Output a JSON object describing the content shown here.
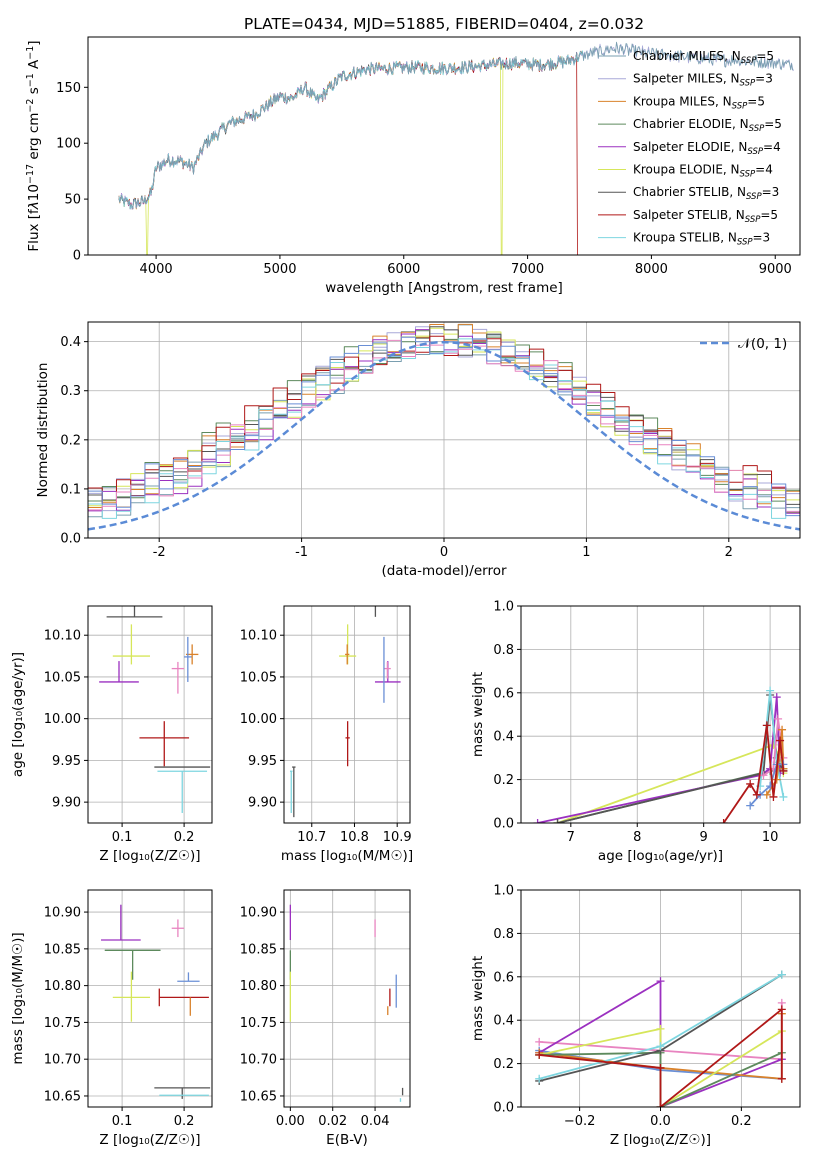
{
  "title": "PLATE=0434, MJD=51885, FIBERID=0404, z=0.032",
  "models": [
    {
      "name": "Chabrier MILES",
      "nssp": "5",
      "color": "#7a9fb0"
    },
    {
      "name": "Salpeter MILES",
      "nssp": "3",
      "color": "#a8a8d8"
    },
    {
      "name": "Kroupa MILES",
      "nssp": "5",
      "color": "#d9822b"
    },
    {
      "name": "Chabrier ELODIE",
      "nssp": "5",
      "color": "#5d8a5d"
    },
    {
      "name": "Salpeter ELODIE",
      "nssp": "4",
      "color": "#9b30c0"
    },
    {
      "name": "Kroupa ELODIE",
      "nssp": "4",
      "color": "#d6e65a"
    },
    {
      "name": "Chabrier STELIB",
      "nssp": "3",
      "color": "#555555"
    },
    {
      "name": "Salpeter STELIB",
      "nssp": "5",
      "color": "#b01818"
    },
    {
      "name": "Kroupa STELIB",
      "nssp": "3",
      "color": "#7ed6e0"
    }
  ],
  "extra_colors": {
    "pink": "#e884c0",
    "blue": "#6a8fd6"
  },
  "chart_data": [
    {
      "id": "spectrum",
      "type": "line",
      "xlabel": "wavelength [Angstrom, rest frame]",
      "ylabel_parts": [
        "Flux [f",
        "λ",
        "10",
        "−17",
        " erg cm",
        "−2",
        " s",
        "−1",
        " A",
        "−1",
        "]"
      ],
      "xlim": [
        3450,
        9200
      ],
      "ylim": [
        0,
        195
      ],
      "xticks": [
        4000,
        5000,
        6000,
        7000,
        8000,
        9000
      ],
      "yticks": [
        0,
        50,
        100,
        150
      ],
      "nssp_label": "N",
      "nssp_sub": "SSP",
      "continuum": [
        [
          3700,
          50
        ],
        [
          3800,
          45
        ],
        [
          3900,
          48
        ],
        [
          3960,
          55
        ],
        [
          4000,
          78
        ],
        [
          4100,
          85
        ],
        [
          4200,
          84
        ],
        [
          4300,
          78
        ],
        [
          4400,
          100
        ],
        [
          4600,
          118
        ],
        [
          4800,
          126
        ],
        [
          5000,
          142
        ],
        [
          5100,
          140
        ],
        [
          5200,
          150
        ],
        [
          5300,
          138
        ],
        [
          5500,
          160
        ],
        [
          5700,
          166
        ],
        [
          5900,
          167
        ],
        [
          6100,
          168
        ],
        [
          6300,
          167
        ],
        [
          6500,
          168
        ],
        [
          6700,
          170
        ],
        [
          6900,
          172
        ],
        [
          7100,
          170
        ],
        [
          7300,
          173
        ],
        [
          7500,
          180
        ],
        [
          7700,
          185
        ],
        [
          8000,
          180
        ],
        [
          8500,
          175
        ],
        [
          9000,
          172
        ],
        [
          9150,
          170
        ]
      ],
      "dropouts": [
        {
          "model": 5,
          "x": 3930
        },
        {
          "model": 5,
          "x": 6790
        },
        {
          "model": 7,
          "x": 7410
        }
      ]
    },
    {
      "id": "residual-histogram",
      "type": "step",
      "xlabel": "(data-model)/error",
      "ylabel": "Normed distribution",
      "xlim": [
        -2.5,
        2.5
      ],
      "ylim": [
        0,
        0.44
      ],
      "xticks": [
        -2,
        -1,
        0,
        1,
        2
      ],
      "yticks": [
        0.0,
        0.1,
        0.2,
        0.3,
        0.4
      ],
      "legend": "𝒩(0, 1)",
      "bin_width": 0.1,
      "bin_start": -2.5,
      "normal": {
        "mu": 0,
        "sigma": 1
      }
    },
    {
      "id": "age-vs-Z",
      "type": "errorbar",
      "xlabel": "Z [log₁₀(Z/Z☉)]",
      "ylabel": "age  [log₁₀(age/yr)]",
      "xlim": [
        0.045,
        0.245
      ],
      "ylim": [
        9.875,
        10.135
      ],
      "xticks": [
        0.1,
        0.2
      ],
      "yticks": [
        9.9,
        9.95,
        10.0,
        10.05,
        10.1
      ],
      "points": [
        {
          "c": "#555555",
          "x": 0.12,
          "xe": 0.045,
          "y": 10.122,
          "ye": [
            0.0,
            0.018
          ]
        },
        {
          "c": "#555555",
          "x": 0.197,
          "xe": 0.045,
          "y": 9.942,
          "ye": [
            0.0,
            0.0
          ]
        },
        {
          "c": "#d6e65a",
          "x": 0.115,
          "xe": 0.03,
          "y": 10.075,
          "ye": [
            0.01,
            0.038
          ]
        },
        {
          "c": "#9b30c0",
          "x": 0.095,
          "xe": 0.032,
          "y": 10.044,
          "ye": [
            0.0,
            0.025
          ]
        },
        {
          "c": "#e884c0",
          "x": 0.19,
          "xe": 0.01,
          "y": 10.06,
          "ye": [
            0.03,
            0.008
          ]
        },
        {
          "c": "#d9822b",
          "x": 0.213,
          "xe": 0.01,
          "y": 10.077,
          "ye": [
            0.012,
            0.012
          ]
        },
        {
          "c": "#6a8fd6",
          "x": 0.206,
          "xe": 0.006,
          "y": 10.074,
          "ye": [
            0.03,
            0.024
          ]
        },
        {
          "c": "#b01818",
          "x": 0.168,
          "xe": 0.04,
          "y": 9.977,
          "ye": [
            0.034,
            0.02
          ]
        },
        {
          "c": "#7ed6e0",
          "x": 0.197,
          "xe": 0.04,
          "y": 9.937,
          "ye": [
            0.05,
            0.0
          ]
        }
      ]
    },
    {
      "id": "age-vs-mass",
      "type": "errorbar",
      "xlabel": "mass [log₁₀(M/M☉)]",
      "ylabel": "",
      "xlim": [
        10.635,
        10.93
      ],
      "ylim": [
        9.875,
        10.135
      ],
      "xticks": [
        10.7,
        10.8,
        10.9
      ],
      "yticks": [
        9.9,
        9.95,
        10.0,
        10.05,
        10.1
      ],
      "points": [
        {
          "c": "#555555",
          "x": 10.849,
          "xe": 0.0,
          "y": 10.122,
          "ye": [
            0.0,
            0.018
          ]
        },
        {
          "c": "#d6e65a",
          "x": 10.784,
          "xe": 0.02,
          "y": 10.075,
          "ye": [
            0.01,
            0.038
          ]
        },
        {
          "c": "#d9822b",
          "x": 10.783,
          "xe": 0.005,
          "y": 10.077,
          "ye": [
            0.012,
            0.012
          ]
        },
        {
          "c": "#9b30c0",
          "x": 10.878,
          "xe": 0.03,
          "y": 10.044,
          "ye": [
            0.0,
            0.025
          ]
        },
        {
          "c": "#e884c0",
          "x": 10.877,
          "xe": 0.008,
          "y": 10.06,
          "ye": [
            0.012,
            0.008
          ]
        },
        {
          "c": "#6a8fd6",
          "x": 10.869,
          "xe": 0.0,
          "y": 10.074,
          "ye": [
            0.055,
            0.024
          ]
        },
        {
          "c": "#b01818",
          "x": 10.784,
          "xe": 0.005,
          "y": 9.977,
          "ye": [
            0.034,
            0.02
          ]
        },
        {
          "c": "#555555",
          "x": 10.658,
          "xe": 0.004,
          "y": 9.942,
          "ye": [
            0.06,
            0.0
          ]
        },
        {
          "c": "#7ed6e0",
          "x": 10.652,
          "xe": 0.003,
          "y": 9.937,
          "ye": [
            0.05,
            0.0
          ]
        }
      ]
    },
    {
      "id": "weight-vs-age",
      "type": "line",
      "xlabel": "age  [log₁₀(age/yr)]",
      "ylabel": "mass weight",
      "xlim": [
        6.25,
        10.45
      ],
      "ylim": [
        0,
        1
      ],
      "xticks": [
        7,
        8,
        9,
        10
      ],
      "yticks": [
        0.0,
        0.2,
        0.4,
        0.6,
        0.8,
        1.0
      ],
      "series": [
        {
          "c": "#5d8a5d",
          "pts": [
            [
              6.8,
              0.0
            ],
            [
              10.0,
              0.24
            ],
            [
              10.1,
              0.25
            ],
            [
              10.2,
              0.25
            ]
          ]
        },
        {
          "c": "#d6e65a",
          "pts": [
            [
              6.8,
              0.0
            ],
            [
              10.05,
              0.36
            ],
            [
              10.15,
              0.3
            ],
            [
              10.2,
              0.23
            ]
          ]
        },
        {
          "c": "#9b30c0",
          "pts": [
            [
              6.5,
              0.0
            ],
            [
              9.85,
              0.22
            ],
            [
              10.0,
              0.25
            ],
            [
              10.1,
              0.58
            ],
            [
              10.15,
              0.23
            ]
          ]
        },
        {
          "c": "#555555",
          "pts": [
            [
              6.8,
              0.0
            ],
            [
              9.9,
              0.23
            ],
            [
              10.0,
              0.59
            ],
            [
              10.1,
              0.3
            ],
            [
              10.2,
              0.24
            ]
          ]
        },
        {
          "c": "#7ed6e0",
          "pts": [
            [
              9.85,
              0.17
            ],
            [
              10.0,
              0.61
            ],
            [
              10.1,
              0.28
            ],
            [
              10.2,
              0.12
            ]
          ]
        },
        {
          "c": "#e884c0",
          "pts": [
            [
              9.9,
              0.22
            ],
            [
              10.05,
              0.25
            ],
            [
              10.12,
              0.48
            ],
            [
              10.2,
              0.3
            ]
          ]
        },
        {
          "c": "#d9822b",
          "pts": [
            [
              9.95,
              0.13
            ],
            [
              10.1,
              0.2
            ],
            [
              10.18,
              0.43
            ],
            [
              10.2,
              0.25
            ]
          ]
        },
        {
          "c": "#6a8fd6",
          "pts": [
            [
              9.7,
              0.08
            ],
            [
              9.85,
              0.13
            ],
            [
              10.0,
              0.17
            ],
            [
              10.1,
              0.27
            ],
            [
              10.2,
              0.27
            ]
          ]
        },
        {
          "c": "#b01818",
          "pts": [
            [
              9.3,
              0.0
            ],
            [
              9.7,
              0.18
            ],
            [
              9.8,
              0.13
            ],
            [
              9.95,
              0.45
            ],
            [
              10.05,
              0.12
            ],
            [
              10.15,
              0.38
            ],
            [
              10.2,
              0.24
            ]
          ]
        }
      ]
    },
    {
      "id": "mass-vs-Z",
      "type": "errorbar",
      "xlabel": "Z [log₁₀(Z/Z☉)]",
      "ylabel": "mass [log₁₀(M/M☉)]",
      "xlim": [
        0.045,
        0.245
      ],
      "ylim": [
        10.635,
        10.93
      ],
      "xticks": [
        0.1,
        0.2
      ],
      "yticks": [
        10.65,
        10.7,
        10.75,
        10.8,
        10.85,
        10.9
      ],
      "points": [
        {
          "c": "#9b30c0",
          "x": 0.098,
          "xe": 0.032,
          "y": 10.862,
          "ye": [
            0.0,
            0.048
          ]
        },
        {
          "c": "#5d8a5d",
          "x": 0.117,
          "xe": 0.045,
          "y": 10.848,
          "ye": [
            0.04,
            0.0
          ]
        },
        {
          "c": "#d6e65a",
          "x": 0.115,
          "xe": 0.03,
          "y": 10.784,
          "ye": [
            0.033,
            0.035
          ]
        },
        {
          "c": "#e884c0",
          "x": 0.19,
          "xe": 0.01,
          "y": 10.878,
          "ye": [
            0.012,
            0.012
          ]
        },
        {
          "c": "#6a8fd6",
          "x": 0.207,
          "xe": 0.018,
          "y": 10.806,
          "ye": [
            0.0,
            0.012
          ]
        },
        {
          "c": "#b01818",
          "x": 0.2,
          "xe": 0.04,
          "y": 10.784,
          "ye": [
            0.0,
            0.0
          ]
        },
        {
          "c": "#b01818",
          "x": 0.16,
          "xe": 0.0,
          "y": 10.784,
          "ye": [
            0.012,
            0.012
          ]
        },
        {
          "c": "#d9822b",
          "x": 0.21,
          "xe": 0.0,
          "y": 10.784,
          "ye": [
            0.025,
            0.0
          ]
        },
        {
          "c": "#555555",
          "x": 0.197,
          "xe": 0.045,
          "y": 10.661,
          "ye": [
            0.015,
            0.0
          ]
        },
        {
          "c": "#7ed6e0",
          "x": 0.2,
          "xe": 0.04,
          "y": 10.651,
          "ye": [
            0.0,
            0.0
          ]
        }
      ]
    },
    {
      "id": "mass-vs-ebv",
      "type": "errorbar",
      "xlabel": "E(B-V)",
      "ylabel": "",
      "xlim": [
        -0.003,
        0.0565
      ],
      "ylim": [
        10.635,
        10.93
      ],
      "xticks": [
        0.0,
        0.02,
        0.04
      ],
      "yticks": [
        10.65,
        10.7,
        10.75,
        10.8,
        10.85,
        10.9
      ],
      "points": [
        {
          "c": "#9b30c0",
          "x": 0.0,
          "xe": 0.0,
          "y": 10.862,
          "ye": [
            0.0,
            0.048
          ]
        },
        {
          "c": "#5d8a5d",
          "x": 0.0,
          "xe": 0.0,
          "y": 10.848,
          "ye": [
            0.04,
            0.0
          ]
        },
        {
          "c": "#d6e65a",
          "x": 0.0,
          "xe": 0.0,
          "y": 10.784,
          "ye": [
            0.033,
            0.035
          ]
        },
        {
          "c": "#e884c0",
          "x": 0.04,
          "xe": 0.0,
          "y": 10.878,
          "ye": [
            0.012,
            0.012
          ]
        },
        {
          "c": "#6a8fd6",
          "x": 0.05,
          "xe": 0.0,
          "y": 10.79,
          "ye": [
            0.02,
            0.025
          ]
        },
        {
          "c": "#b01818",
          "x": 0.047,
          "xe": 0.0,
          "y": 10.784,
          "ye": [
            0.012,
            0.012
          ]
        },
        {
          "c": "#d9822b",
          "x": 0.046,
          "xe": 0.0,
          "y": 10.772,
          "ye": [
            0.012,
            0.0
          ]
        },
        {
          "c": "#555555",
          "x": 0.053,
          "xe": 0.0,
          "y": 10.651,
          "ye": [
            0.0,
            0.01
          ]
        },
        {
          "c": "#7ed6e0",
          "x": 0.052,
          "xe": 0.0,
          "y": 10.647,
          "ye": [
            0.005,
            0.0
          ]
        }
      ]
    },
    {
      "id": "weight-vs-Z",
      "type": "line",
      "xlabel": "Z [log₁₀(Z/Z☉)]",
      "ylabel": "mass weight",
      "xlim": [
        -0.345,
        0.345
      ],
      "ylim": [
        0,
        1
      ],
      "xticks": [
        -0.2,
        0.0,
        0.2
      ],
      "yticks": [
        0.0,
        0.2,
        0.4,
        0.6,
        0.8,
        1.0
      ],
      "series": [
        {
          "c": "#e884c0",
          "pts": [
            [
              -0.3,
              0.3
            ],
            [
              0.3,
              0.22
            ],
            [
              0.3,
              0.48
            ]
          ]
        },
        {
          "c": "#6a8fd6",
          "pts": [
            [
              -0.3,
              0.26
            ],
            [
              0.0,
              0.17
            ],
            [
              0.3,
              0.13
            ]
          ]
        },
        {
          "c": "#9b30c0",
          "pts": [
            [
              -0.3,
              0.25
            ],
            [
              0.0,
              0.58
            ],
            [
              0.0,
              0.0
            ],
            [
              0.3,
              0.22
            ]
          ]
        },
        {
          "c": "#d9822b",
          "pts": [
            [
              -0.3,
              0.25
            ],
            [
              0.0,
              0.18
            ],
            [
              0.3,
              0.13
            ],
            [
              0.3,
              0.43
            ]
          ]
        },
        {
          "c": "#d6e65a",
          "pts": [
            [
              -0.3,
              0.24
            ],
            [
              0.0,
              0.36
            ],
            [
              0.0,
              0.0
            ],
            [
              0.3,
              0.35
            ]
          ]
        },
        {
          "c": "#5d8a5d",
          "pts": [
            [
              -0.3,
              0.24
            ],
            [
              0.0,
              0.25
            ],
            [
              0.0,
              0.0
            ],
            [
              0.3,
              0.25
            ]
          ]
        },
        {
          "c": "#555555",
          "pts": [
            [
              -0.3,
              0.12
            ],
            [
              0.0,
              0.26
            ],
            [
              0.3,
              0.61
            ]
          ]
        },
        {
          "c": "#7ed6e0",
          "pts": [
            [
              -0.3,
              0.13
            ],
            [
              0.0,
              0.28
            ],
            [
              0.3,
              0.61
            ]
          ]
        },
        {
          "c": "#b01818",
          "pts": [
            [
              -0.3,
              0.24
            ],
            [
              0.0,
              0.18
            ],
            [
              0.0,
              0.0
            ],
            [
              0.3,
              0.45
            ],
            [
              0.3,
              0.13
            ]
          ]
        }
      ]
    }
  ]
}
